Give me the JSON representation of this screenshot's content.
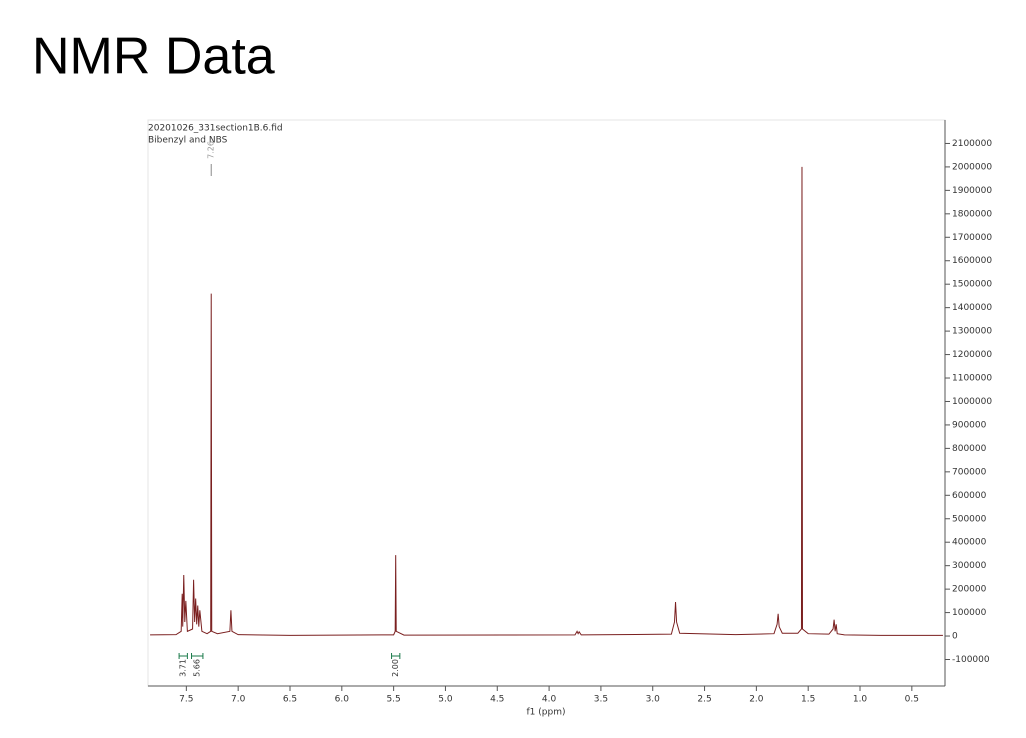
{
  "chart_data": {
    "type": "line",
    "title": "NMR Data",
    "subtitle": [
      "20201026_331section1B.6.fid",
      "Bibenzyl and NBS"
    ],
    "x_label": "f1 (ppm)",
    "color": "#7a1f1f",
    "x": [
      7.85,
      7.6,
      7.55,
      7.54,
      7.535,
      7.525,
      7.515,
      7.505,
      7.49,
      7.44,
      7.43,
      7.42,
      7.41,
      7.4,
      7.39,
      7.38,
      7.37,
      7.35,
      7.3,
      7.265,
      7.26,
      7.255,
      7.2,
      7.08,
      7.07,
      7.06,
      7.0,
      6.5,
      5.5,
      5.485,
      5.48,
      5.475,
      5.4,
      3.75,
      3.73,
      3.72,
      3.71,
      3.69,
      2.82,
      2.79,
      2.78,
      2.77,
      2.74,
      2.2,
      1.83,
      1.8,
      1.79,
      1.78,
      1.75,
      1.6,
      1.565,
      1.56,
      1.555,
      1.5,
      1.3,
      1.26,
      1.25,
      1.24,
      1.23,
      1.22,
      1.15,
      0.8,
      0.2
    ],
    "values": [
      5000,
      6000,
      20000,
      180000,
      40000,
      260000,
      60000,
      150000,
      20000,
      30000,
      240000,
      60000,
      160000,
      50000,
      130000,
      40000,
      110000,
      20000,
      10000,
      20000,
      1460000,
      20000,
      10000,
      20000,
      110000,
      20000,
      6000,
      3000,
      5000,
      20000,
      345000,
      20000,
      4000,
      5000,
      20000,
      10000,
      18000,
      5000,
      8000,
      60000,
      145000,
      60000,
      12000,
      6000,
      10000,
      50000,
      95000,
      40000,
      12000,
      12000,
      30000,
      2000000,
      30000,
      10000,
      8000,
      30000,
      70000,
      20000,
      50000,
      10000,
      5000,
      3000,
      3000
    ],
    "xlim": [
      7.87,
      0.18
    ],
    "ylim": [
      -213000,
      2200000
    ],
    "xticks": [
      {
        "value": 7.5,
        "label": "7.5"
      },
      {
        "value": 7,
        "label": "7.0"
      },
      {
        "value": 6.5,
        "label": "6.5"
      },
      {
        "value": 6,
        "label": "6.0"
      },
      {
        "value": 5.5,
        "label": "5.5"
      },
      {
        "value": 5,
        "label": "5.0"
      },
      {
        "value": 4.5,
        "label": "4.5"
      },
      {
        "value": 4,
        "label": "4.0"
      },
      {
        "value": 3.5,
        "label": "3.5"
      },
      {
        "value": 3,
        "label": "3.0"
      },
      {
        "value": 2.5,
        "label": "2.5"
      },
      {
        "value": 2,
        "label": "2.0"
      },
      {
        "value": 1.5,
        "label": "1.5"
      },
      {
        "value": 1,
        "label": "1.0"
      },
      {
        "value": 0.5,
        "label": "0.5"
      }
    ],
    "yticks": [
      -100000,
      0,
      100000,
      200000,
      300000,
      400000,
      500000,
      600000,
      700000,
      800000,
      900000,
      1000000,
      1100000,
      1200000,
      1300000,
      1400000,
      1500000,
      1600000,
      1700000,
      1800000,
      1900000,
      2000000,
      2100000
    ],
    "peak_labels": [
      {
        "value": 7.26,
        "label": "7.26"
      }
    ],
    "integrals": {
      "ranges": [
        [
          7.57,
          7.49
        ],
        [
          7.45,
          7.34
        ],
        [
          5.52,
          5.44
        ]
      ],
      "values": [
        3.71,
        5.66,
        2.0
      ],
      "value_labels": [
        "3.71",
        "5.66",
        "2.00"
      ]
    }
  }
}
